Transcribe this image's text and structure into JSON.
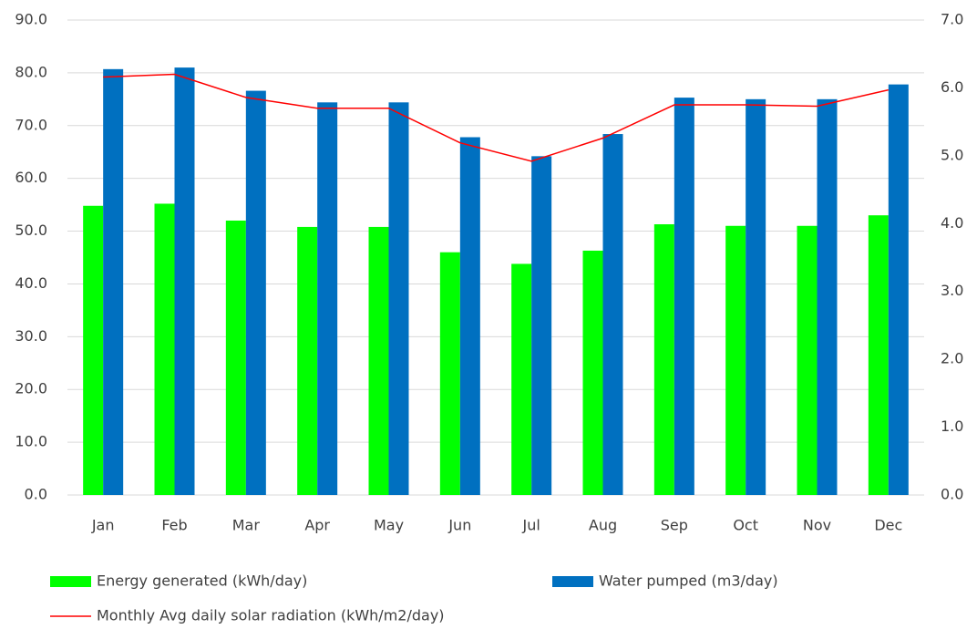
{
  "chart_data": {
    "type": "bar",
    "categories": [
      "Jan",
      "Feb",
      "Mar",
      "Apr",
      "May",
      "Jun",
      "Jul",
      "Aug",
      "Sep",
      "Oct",
      "Nov",
      "Dec"
    ],
    "series": [
      {
        "name": "Energy generated (kWh/day)",
        "color": "#00ff00",
        "values": [
          54.8,
          55.2,
          52.0,
          50.8,
          50.8,
          46.0,
          43.8,
          46.3,
          51.3,
          51.0,
          51.0,
          53.0
        ]
      },
      {
        "name": "Water pumped (m3/day)",
        "color": "#0070c0",
        "values": [
          80.7,
          81.0,
          76.6,
          74.4,
          74.4,
          67.8,
          64.2,
          68.4,
          75.3,
          75.0,
          75.0,
          77.8
        ]
      },
      {
        "name": "Monthly Avg daily solar radiation (kWh/m2/day)",
        "color": "#ff0000",
        "type": "line",
        "axis": "y2",
        "values": [
          6.16,
          6.2,
          5.86,
          5.7,
          5.7,
          5.19,
          4.92,
          5.26,
          5.75,
          5.75,
          5.73,
          5.97
        ]
      }
    ],
    "ylim": [
      0,
      90
    ],
    "yticks": [
      {
        "value": 0,
        "label": "0.0"
      },
      {
        "value": 10,
        "label": "10.0"
      },
      {
        "value": 20,
        "label": "20.0"
      },
      {
        "value": 30,
        "label": "30.0"
      },
      {
        "value": 40,
        "label": "40.0"
      },
      {
        "value": 50,
        "label": "50.0"
      },
      {
        "value": 60,
        "label": "60.0"
      },
      {
        "value": 70,
        "label": "70.0"
      },
      {
        "value": 80,
        "label": "80.0"
      },
      {
        "value": 90,
        "label": "90.0"
      }
    ],
    "y2lim": [
      0,
      7
    ],
    "y2ticks": [
      {
        "value": 0,
        "label": "0.0"
      },
      {
        "value": 1,
        "label": "1.0"
      },
      {
        "value": 2,
        "label": "2.0"
      },
      {
        "value": 3,
        "label": "3.0"
      },
      {
        "value": 4,
        "label": "4.0"
      },
      {
        "value": 5,
        "label": "5.0"
      },
      {
        "value": 6,
        "label": "6.0"
      },
      {
        "value": 7,
        "label": "7.0"
      }
    ],
    "grid": true
  }
}
